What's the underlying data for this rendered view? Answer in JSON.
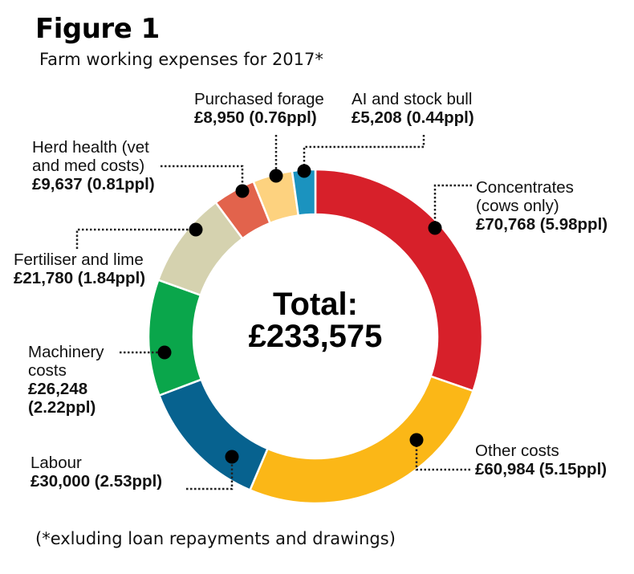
{
  "header": {
    "title": "Figure 1",
    "subtitle": "Farm working expenses for 2017*"
  },
  "footnote": "(*exluding loan repayments and drawings)",
  "center": {
    "label": "Total:",
    "value": "£233,575"
  },
  "chart_data": {
    "type": "pie",
    "variant": "donut",
    "title": "Figure 1",
    "subtitle": "Farm working expenses for 2017*",
    "total": 233575,
    "slices": [
      {
        "key": "concentrates",
        "value": 70768,
        "color": "#d7202a",
        "label_lines": [
          "Concentrates",
          "(cows only)"
        ],
        "value_text": "£70,768 (5.98ppl)"
      },
      {
        "key": "other",
        "value": 60984,
        "color": "#fbb717",
        "label_lines": [
          "Other costs"
        ],
        "value_text": "£60,984 (5.15ppl)"
      },
      {
        "key": "labour",
        "value": 30000,
        "color": "#07628f",
        "label_lines": [
          "Labour"
        ],
        "value_text": "£30,000 (2.53ppl)"
      },
      {
        "key": "machinery",
        "value": 26248,
        "color": "#0aa64b",
        "label_lines": [
          "Machinery",
          "costs"
        ],
        "value_text": [
          "£26,248",
          "(2.22ppl)"
        ]
      },
      {
        "key": "fertiliser",
        "value": 21780,
        "color": "#d5d2af",
        "label_lines": [
          "Fertiliser and lime"
        ],
        "value_text": "£21,780 (1.84ppl)"
      },
      {
        "key": "herd",
        "value": 9637,
        "color": "#e2634c",
        "label_lines": [
          "Herd health (vet",
          "and med costs)"
        ],
        "value_text": "£9,637 (0.81ppl)"
      },
      {
        "key": "forage",
        "value": 8950,
        "color": "#fdd27f",
        "label_lines": [
          "Purchased forage"
        ],
        "value_text": "£8,950 (0.76ppl)"
      },
      {
        "key": "ai",
        "value": 5208,
        "color": "#1b93bf",
        "label_lines": [
          "AI and stock bull"
        ],
        "value_text": "£5,208 (0.44ppl)"
      }
    ]
  }
}
